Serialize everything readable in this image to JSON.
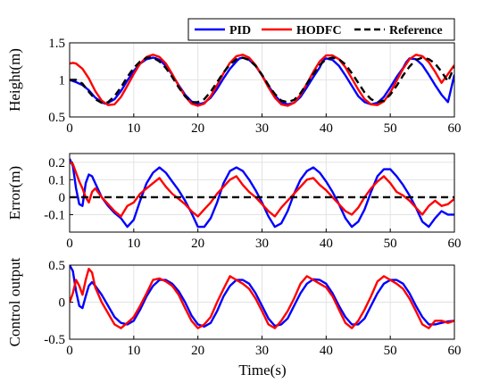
{
  "figure": {
    "xlabel": "Time(s)",
    "legend": {
      "placement": "top-right",
      "entries": [
        "PID",
        "HODFC",
        "Reference"
      ]
    },
    "colors": {
      "PID": "#0000ff",
      "HODFC": "#ff0000",
      "Reference": "#000000"
    }
  },
  "chart_data": [
    {
      "type": "line",
      "ylabel": "Height(m)",
      "xlabel": "",
      "xlim": [
        0,
        60
      ],
      "ylim": [
        0.5,
        1.5
      ],
      "xticks": [
        "0",
        "10",
        "20",
        "30",
        "40",
        "50",
        "60"
      ],
      "yticks": [
        "0.5",
        "1",
        "1.5"
      ],
      "ytick_values": [
        0.5,
        1,
        1.5
      ],
      "grid": true,
      "series": [
        {
          "name": "PID",
          "color": "#0000ff",
          "style": "solid",
          "x": [
            0,
            1,
            2,
            3,
            4,
            5,
            5.5,
            6,
            7,
            8,
            9,
            10,
            11,
            12,
            13,
            13.5,
            14,
            15,
            16,
            17,
            18,
            19,
            20,
            21,
            22,
            23,
            24,
            25,
            26,
            26.5,
            27,
            28,
            29,
            30,
            31,
            32,
            33,
            34,
            35,
            36,
            37,
            38,
            39,
            39.5,
            40,
            41,
            42,
            43,
            44,
            45,
            46,
            47,
            48,
            49,
            50,
            51,
            52,
            52.5,
            53,
            54,
            55,
            56,
            57,
            58,
            59,
            60
          ],
          "y": [
            1.0,
            0.97,
            0.93,
            0.86,
            0.76,
            0.7,
            0.68,
            0.69,
            0.74,
            0.85,
            0.99,
            1.12,
            1.22,
            1.28,
            1.3,
            1.29,
            1.27,
            1.19,
            1.07,
            0.93,
            0.8,
            0.71,
            0.67,
            0.69,
            0.76,
            0.88,
            1.02,
            1.15,
            1.25,
            1.29,
            1.3,
            1.27,
            1.19,
            1.06,
            0.92,
            0.79,
            0.7,
            0.67,
            0.69,
            0.77,
            0.9,
            1.04,
            1.17,
            1.26,
            1.29,
            1.27,
            1.19,
            1.06,
            0.92,
            0.78,
            0.7,
            0.67,
            0.69,
            0.77,
            0.9,
            1.04,
            1.16,
            1.24,
            1.29,
            1.28,
            1.2,
            1.07,
            0.93,
            0.8,
            0.7,
            1.07
          ]
        },
        {
          "name": "HODFC",
          "color": "#ff0000",
          "style": "solid",
          "x": [
            0,
            0.5,
            1,
            2,
            3,
            4,
            5,
            6,
            7,
            8,
            9,
            10,
            11,
            12,
            13,
            14,
            15,
            16,
            17,
            18,
            19,
            20,
            21,
            22,
            23,
            24,
            25,
            26,
            27,
            28,
            29,
            30,
            31,
            32,
            33,
            34,
            35,
            36,
            37,
            38,
            39,
            40,
            41,
            42,
            43,
            44,
            45,
            46,
            47,
            48,
            49,
            50,
            51,
            52,
            53,
            54,
            55,
            56,
            57,
            58,
            59,
            60
          ],
          "y": [
            1.22,
            1.23,
            1.22,
            1.15,
            1.02,
            0.85,
            0.72,
            0.66,
            0.67,
            0.77,
            0.92,
            1.08,
            1.22,
            1.31,
            1.34,
            1.31,
            1.22,
            1.08,
            0.92,
            0.78,
            0.68,
            0.65,
            0.68,
            0.78,
            0.93,
            1.09,
            1.23,
            1.32,
            1.34,
            1.3,
            1.2,
            1.06,
            0.9,
            0.76,
            0.67,
            0.65,
            0.69,
            0.8,
            0.95,
            1.11,
            1.25,
            1.33,
            1.33,
            1.28,
            1.17,
            1.02,
            0.87,
            0.74,
            0.67,
            0.66,
            0.71,
            0.83,
            0.99,
            1.15,
            1.28,
            1.34,
            1.32,
            1.24,
            1.11,
            0.96,
            1.08,
            1.2
          ]
        },
        {
          "name": "Reference",
          "color": "#000000",
          "style": "dashed",
          "x": [
            0,
            1,
            2,
            3,
            4,
            5,
            6,
            7,
            8,
            9,
            10,
            11,
            12,
            13,
            14,
            15,
            16,
            17,
            18,
            19,
            20,
            21,
            22,
            23,
            24,
            25,
            26,
            27,
            28,
            29,
            30,
            31,
            32,
            33,
            34,
            35,
            36,
            37,
            38,
            39,
            40,
            41,
            42,
            43,
            44,
            45,
            46,
            47,
            48,
            49,
            50,
            51,
            52,
            53,
            54,
            55,
            56,
            57,
            58,
            59,
            60
          ],
          "y": [
            1.0,
            1.0,
            0.95,
            0.84,
            0.74,
            0.69,
            0.7,
            0.78,
            0.9,
            1.04,
            1.16,
            1.25,
            1.3,
            1.3,
            1.25,
            1.16,
            1.04,
            0.9,
            0.78,
            0.7,
            0.7,
            0.74,
            0.84,
            0.97,
            1.1,
            1.21,
            1.28,
            1.3,
            1.27,
            1.19,
            1.07,
            0.93,
            0.81,
            0.72,
            0.7,
            0.73,
            0.82,
            0.95,
            1.08,
            1.2,
            1.28,
            1.3,
            1.28,
            1.21,
            1.09,
            0.96,
            0.83,
            0.74,
            0.7,
            0.72,
            0.8,
            0.92,
            1.06,
            1.18,
            1.27,
            1.3,
            1.28,
            1.22,
            1.11,
            0.98,
            1.18
          ]
        }
      ]
    },
    {
      "type": "line",
      "ylabel": "Error(m)",
      "xlabel": "",
      "xlim": [
        0,
        60
      ],
      "ylim": [
        -0.2,
        0.25
      ],
      "xticks": [
        "0",
        "10",
        "20",
        "30",
        "40",
        "50",
        "60"
      ],
      "yticks": [
        "-0.1",
        "0",
        "0.1",
        "0.2"
      ],
      "ytick_values": [
        -0.1,
        0,
        0.1,
        0.2
      ],
      "grid": true,
      "series": [
        {
          "name": "PID",
          "color": "#0000ff",
          "style": "solid",
          "x": [
            0,
            0.5,
            1,
            1.5,
            2,
            2.5,
            3,
            3.5,
            4,
            5,
            6,
            7,
            8,
            9,
            10,
            11,
            12,
            13,
            14,
            15,
            16,
            17,
            18,
            19,
            20,
            21,
            22,
            23,
            24,
            25,
            26,
            27,
            28,
            29,
            30,
            31,
            32,
            33,
            34,
            35,
            36,
            37,
            38,
            39,
            40,
            41,
            42,
            43,
            44,
            45,
            46,
            47,
            48,
            49,
            50,
            51,
            52,
            53,
            54,
            55,
            56,
            57,
            58,
            59,
            60
          ],
          "y": [
            0.22,
            0.18,
            0.05,
            -0.04,
            -0.05,
            0.08,
            0.13,
            0.12,
            0.08,
            0.0,
            -0.05,
            -0.09,
            -0.12,
            -0.17,
            -0.13,
            -0.02,
            0.08,
            0.14,
            0.17,
            0.14,
            0.09,
            0.04,
            -0.02,
            -0.09,
            -0.17,
            -0.17,
            -0.12,
            -0.03,
            0.08,
            0.15,
            0.17,
            0.15,
            0.1,
            0.04,
            -0.03,
            -0.11,
            -0.17,
            -0.15,
            -0.08,
            0.02,
            0.1,
            0.15,
            0.17,
            0.14,
            0.09,
            0.03,
            -0.04,
            -0.12,
            -0.17,
            -0.14,
            -0.07,
            0.03,
            0.12,
            0.16,
            0.16,
            0.12,
            0.07,
            0.01,
            -0.06,
            -0.14,
            -0.17,
            -0.12,
            -0.08,
            -0.1,
            -0.1
          ]
        },
        {
          "name": "HODFC",
          "color": "#ff0000",
          "style": "solid",
          "x": [
            0,
            0.5,
            1,
            1.5,
            2,
            2.5,
            3,
            3.5,
            4,
            5,
            6,
            7,
            8,
            9,
            10,
            11,
            12,
            13,
            14,
            15,
            16,
            17,
            18,
            19,
            20,
            21,
            22,
            23,
            24,
            25,
            26,
            27,
            28,
            29,
            30,
            31,
            32,
            33,
            34,
            35,
            36,
            37,
            38,
            39,
            40,
            41,
            42,
            43,
            44,
            45,
            46,
            47,
            48,
            49,
            50,
            51,
            52,
            53,
            54,
            55,
            56,
            57,
            58,
            59,
            60
          ],
          "y": [
            0.2,
            0.19,
            0.14,
            0.09,
            0.05,
            0.0,
            -0.03,
            0.03,
            0.05,
            0.0,
            -0.04,
            -0.08,
            -0.11,
            -0.05,
            -0.03,
            0.02,
            0.05,
            0.08,
            0.11,
            0.06,
            0.02,
            -0.01,
            -0.04,
            -0.08,
            -0.11,
            -0.07,
            -0.03,
            0.02,
            0.06,
            0.1,
            0.12,
            0.07,
            0.03,
            0.0,
            -0.04,
            -0.08,
            -0.11,
            -0.06,
            -0.02,
            0.02,
            0.06,
            0.1,
            0.11,
            0.07,
            0.04,
            0.0,
            -0.04,
            -0.08,
            -0.1,
            -0.06,
            0.0,
            0.05,
            0.09,
            0.12,
            0.08,
            0.03,
            0.01,
            -0.02,
            -0.06,
            -0.1,
            -0.05,
            -0.02,
            -0.05,
            -0.04,
            -0.01
          ]
        },
        {
          "name": "Reference",
          "color": "#000000",
          "style": "dashed",
          "x": [
            0,
            60
          ],
          "y": [
            0,
            0
          ]
        }
      ]
    },
    {
      "type": "line",
      "ylabel": "Control output",
      "xlabel": "Time(s)",
      "xlim": [
        0,
        60
      ],
      "ylim": [
        -0.5,
        0.5
      ],
      "xticks": [
        "0",
        "10",
        "20",
        "30",
        "40",
        "50",
        "60"
      ],
      "yticks": [
        "-0.5",
        "0",
        "0.5"
      ],
      "ytick_values": [
        -0.5,
        0,
        0.5
      ],
      "grid": true,
      "series": [
        {
          "name": "PID",
          "color": "#0000ff",
          "style": "solid",
          "x": [
            0,
            0.5,
            1,
            1.5,
            2,
            2.5,
            3,
            3.5,
            4,
            5,
            6,
            7,
            8,
            9,
            10,
            11,
            12,
            13,
            14,
            15,
            16,
            17,
            18,
            19,
            20,
            21,
            22,
            23,
            24,
            25,
            26,
            27,
            28,
            29,
            30,
            31,
            32,
            33,
            34,
            35,
            36,
            37,
            38,
            39,
            40,
            41,
            42,
            43,
            44,
            45,
            46,
            47,
            48,
            49,
            50,
            51,
            52,
            53,
            54,
            55,
            56,
            57,
            58,
            59,
            60
          ],
          "y": [
            0.5,
            0.42,
            0.15,
            -0.05,
            -0.08,
            0.08,
            0.22,
            0.27,
            0.22,
            0.1,
            -0.05,
            -0.2,
            -0.28,
            -0.3,
            -0.25,
            -0.1,
            0.08,
            0.22,
            0.3,
            0.3,
            0.25,
            0.15,
            0.0,
            -0.18,
            -0.3,
            -0.33,
            -0.28,
            -0.12,
            0.08,
            0.22,
            0.3,
            0.3,
            0.25,
            0.12,
            -0.05,
            -0.22,
            -0.32,
            -0.3,
            -0.22,
            -0.05,
            0.12,
            0.25,
            0.31,
            0.3,
            0.25,
            0.12,
            -0.05,
            -0.2,
            -0.3,
            -0.3,
            -0.22,
            -0.05,
            0.12,
            0.25,
            0.3,
            0.3,
            0.25,
            0.12,
            -0.05,
            -0.2,
            -0.3,
            -0.3,
            -0.28,
            -0.26,
            -0.25
          ]
        },
        {
          "name": "HODFC",
          "color": "#ff0000",
          "style": "solid",
          "x": [
            0,
            0.5,
            1,
            1.5,
            2,
            2.5,
            3,
            3.5,
            4,
            5,
            6,
            7,
            8,
            9,
            10,
            11,
            12,
            13,
            14,
            15,
            16,
            17,
            18,
            19,
            20,
            21,
            22,
            23,
            24,
            25,
            26,
            27,
            28,
            29,
            30,
            31,
            32,
            33,
            34,
            35,
            36,
            37,
            38,
            39,
            40,
            41,
            42,
            43,
            44,
            45,
            46,
            47,
            48,
            49,
            50,
            51,
            52,
            53,
            54,
            55,
            56,
            57,
            58,
            59,
            60
          ],
          "y": [
            0.0,
            0.12,
            0.3,
            0.22,
            0.1,
            0.3,
            0.45,
            0.4,
            0.2,
            0.0,
            -0.15,
            -0.3,
            -0.35,
            -0.28,
            -0.2,
            -0.05,
            0.12,
            0.3,
            0.32,
            0.28,
            0.22,
            0.1,
            -0.08,
            -0.25,
            -0.35,
            -0.3,
            -0.2,
            0.0,
            0.18,
            0.35,
            0.3,
            0.25,
            0.18,
            0.05,
            -0.12,
            -0.3,
            -0.35,
            -0.25,
            -0.12,
            0.05,
            0.25,
            0.35,
            0.3,
            0.25,
            0.2,
            0.08,
            -0.1,
            -0.28,
            -0.35,
            -0.25,
            -0.1,
            0.08,
            0.28,
            0.35,
            0.3,
            0.25,
            0.18,
            0.05,
            -0.12,
            -0.3,
            -0.35,
            -0.25,
            -0.25,
            -0.28,
            -0.25
          ]
        }
      ]
    }
  ]
}
